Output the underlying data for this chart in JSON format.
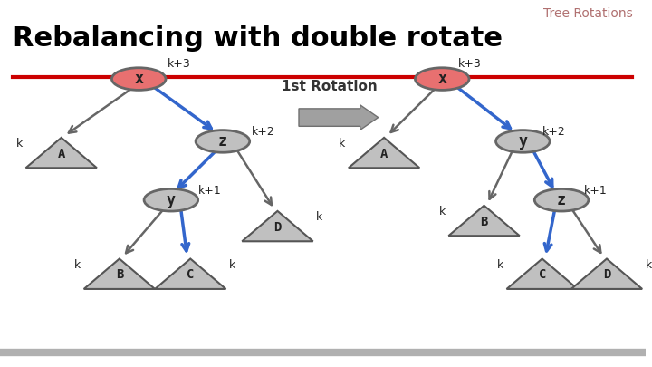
{
  "title": "Rebalancing with double rotate",
  "subtitle": "Tree Rotations",
  "bg_color": "#ffffff",
  "title_color": "#000000",
  "subtitle_color": "#b07070",
  "line_color": "#cc0000",
  "arrow_label": "1st Rotation"
}
